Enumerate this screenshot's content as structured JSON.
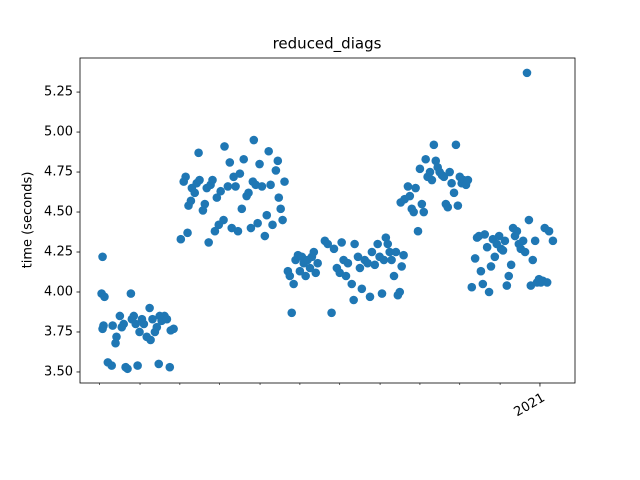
{
  "chart_data": {
    "type": "scatter",
    "title": "reduced_diags",
    "y_label": "time (seconds)",
    "color": "#1f77b4",
    "x": [
      2020.089,
      2020.087,
      2020.093,
      2020.091,
      2020.089,
      2020.1,
      2020.108,
      2020.11,
      2020.116,
      2020.118,
      2020.125,
      2020.129,
      2020.133,
      2020.137,
      2020.141,
      2020.148,
      2020.15,
      2020.154,
      2020.158,
      2020.162,
      2020.166,
      2020.171,
      2020.175,
      2020.181,
      2020.187,
      2020.189,
      2020.193,
      2020.198,
      2020.202,
      2020.206,
      2020.208,
      2020.212,
      2020.218,
      2020.223,
      2020.229,
      2020.231,
      2020.237,
      2020.252,
      2020.258,
      2020.262,
      2020.266,
      2020.268,
      2020.273,
      2020.275,
      2020.281,
      2020.285,
      2020.289,
      2020.291,
      2020.298,
      2020.302,
      2020.306,
      2020.31,
      2020.314,
      2020.318,
      2020.323,
      2020.327,
      2020.331,
      2020.335,
      2020.341,
      2020.343,
      2020.35,
      2020.354,
      2020.358,
      2020.362,
      2020.366,
      2020.371,
      2020.375,
      2020.379,
      2020.383,
      2020.389,
      2020.393,
      2020.398,
      2020.402,
      2020.404,
      2020.408,
      2020.412,
      2020.416,
      2020.421,
      2020.427,
      2020.431,
      2020.435,
      2020.439,
      2020.443,
      2020.45,
      2020.454,
      2020.456,
      2020.46,
      2020.464,
      2020.468,
      2020.475,
      2020.479,
      2020.483,
      2020.487,
      2020.491,
      2020.496,
      2020.5,
      2020.504,
      2020.508,
      2020.512,
      2020.516,
      2020.521,
      2020.525,
      2020.529,
      2020.533,
      2020.537,
      2020.552,
      2020.558,
      2020.566,
      2020.571,
      2020.577,
      2020.583,
      2020.587,
      2020.591,
      2020.596,
      2020.6,
      2020.608,
      2020.612,
      2020.614,
      2020.621,
      2020.625,
      2020.629,
      2020.635,
      2020.641,
      2020.646,
      2020.65,
      2020.656,
      2020.662,
      2020.666,
      2020.671,
      2020.675,
      2020.679,
      2020.683,
      2020.687,
      2020.691,
      2020.696,
      2020.7,
      2020.704,
      2020.708,
      2020.712,
      2020.716,
      2020.71,
      2020.718,
      2020.725,
      2020.729,
      2020.733,
      2020.737,
      2020.741,
      2020.746,
      2020.75,
      2020.754,
      2020.758,
      2020.762,
      2020.766,
      2020.771,
      2020.775,
      2020.779,
      2020.783,
      2020.787,
      2020.791,
      2020.796,
      2020.8,
      2020.804,
      2020.808,
      2020.812,
      2020.816,
      2020.821,
      2020.825,
      2020.829,
      2020.833,
      2020.837,
      2020.841,
      2020.846,
      2020.85,
      2020.858,
      2020.865,
      2020.869,
      2020.873,
      2020.877,
      2020.881,
      2020.885,
      2020.89,
      2020.894,
      2020.898,
      2020.902,
      2020.906,
      2020.91,
      2020.915,
      2020.919,
      2020.923,
      2020.927,
      2020.931,
      2020.935,
      2020.94,
      2020.944,
      2020.948,
      2020.952,
      2020.956,
      2020.96,
      2020.965,
      2020.969,
      2020.973,
      2020.977,
      2020.981,
      2020.985,
      2020.99,
      2020.994,
      2020.998,
      2021.002,
      2021.006,
      2021.01,
      2021.015,
      2021.019,
      2021.027
    ],
    "values": [
      4.22,
      3.99,
      3.97,
      3.79,
      3.77,
      3.56,
      3.54,
      3.79,
      3.68,
      3.72,
      3.85,
      3.78,
      3.8,
      3.53,
      3.52,
      3.99,
      3.83,
      3.85,
      3.8,
      3.54,
      3.75,
      3.83,
      3.8,
      3.72,
      3.9,
      3.7,
      3.83,
      3.75,
      3.78,
      3.55,
      3.85,
      3.82,
      3.85,
      3.83,
      3.53,
      3.76,
      3.77,
      4.33,
      4.69,
      4.72,
      4.37,
      4.54,
      4.57,
      4.65,
      4.62,
      4.68,
      4.87,
      4.7,
      4.51,
      4.55,
      4.65,
      4.31,
      4.67,
      4.7,
      4.38,
      4.59,
      4.42,
      4.63,
      4.45,
      4.91,
      4.66,
      4.81,
      4.4,
      4.72,
      4.66,
      4.38,
      4.74,
      4.52,
      4.83,
      4.6,
      4.62,
      4.4,
      4.69,
      4.95,
      4.67,
      4.43,
      4.8,
      4.66,
      4.35,
      4.48,
      4.88,
      4.67,
      4.42,
      4.76,
      4.82,
      4.59,
      4.52,
      4.45,
      4.69,
      4.13,
      4.1,
      3.87,
      4.05,
      4.2,
      4.23,
      4.13,
      4.22,
      4.18,
      4.1,
      4.2,
      4.15,
      4.22,
      4.25,
      4.12,
      4.18,
      4.32,
      4.3,
      3.87,
      4.27,
      4.15,
      4.12,
      4.31,
      4.2,
      4.1,
      4.18,
      4.05,
      3.95,
      4.3,
      4.22,
      4.15,
      4.02,
      4.2,
      4.18,
      3.97,
      4.25,
      4.17,
      4.3,
      4.22,
      3.99,
      4.2,
      4.34,
      4.3,
      4.25,
      4.2,
      4.1,
      4.25,
      3.98,
      4.0,
      4.16,
      4.23,
      4.56,
      4.58,
      4.66,
      4.6,
      4.52,
      4.5,
      4.65,
      4.38,
      4.77,
      4.55,
      4.5,
      4.83,
      4.72,
      4.75,
      4.7,
      4.92,
      4.82,
      4.78,
      4.75,
      4.73,
      4.72,
      4.55,
      4.53,
      4.75,
      4.68,
      4.62,
      4.92,
      4.54,
      4.72,
      4.68,
      4.7,
      4.67,
      4.7,
      4.03,
      4.21,
      4.34,
      4.35,
      4.13,
      4.05,
      4.36,
      4.28,
      4.0,
      4.16,
      4.33,
      4.22,
      4.3,
      4.35,
      4.27,
      4.26,
      4.32,
      4.04,
      4.1,
      4.17,
      4.4,
      4.35,
      4.38,
      4.3,
      4.27,
      4.32,
      4.25,
      5.37,
      4.45,
      4.04,
      4.2,
      4.32,
      4.06,
      4.08,
      4.06,
      4.07,
      4.4,
      4.06,
      4.38,
      4.32
    ],
    "xlim": [
      2020.042,
      2021.073
    ],
    "xticks": [
      2021
    ],
    "x_minor_ticks": [
      2020.083,
      2020.167,
      2020.25,
      2020.333,
      2020.417,
      2020.5,
      2020.583,
      2020.667,
      2020.75,
      2020.833,
      2020.917
    ],
    "ylim": [
      3.431,
      5.463
    ],
    "yticks": [
      {
        "value": 3.5,
        "label": "3.50"
      },
      3.75,
      {
        "value": 4,
        "label": "4.00"
      },
      4.25,
      {
        "value": 4.5,
        "label": "4.50"
      },
      4.75,
      {
        "value": 5,
        "label": "5.00"
      },
      5.25
    ],
    "grid": false
  }
}
